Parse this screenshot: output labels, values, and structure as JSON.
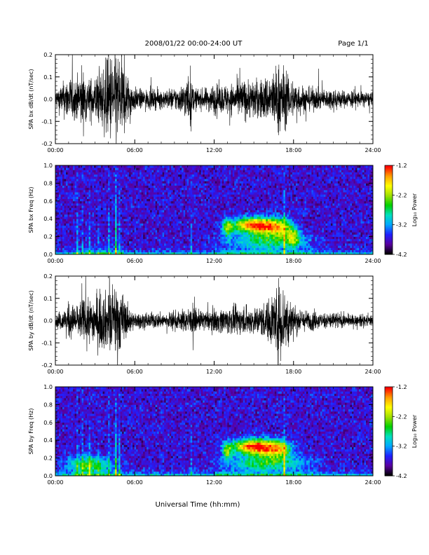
{
  "header": {
    "title": "2008/01/22  00:00-24:00 UT",
    "page": "Page 1/1"
  },
  "x_axis": {
    "title": "Universal Time (hh:mm)",
    "range": [
      0,
      24
    ],
    "unit": "hours UT",
    "ticks": [
      0,
      6,
      12,
      18,
      24
    ],
    "tick_labels": [
      "00:00",
      "06:00",
      "12:00",
      "18:00",
      "24:00"
    ]
  },
  "colors": {
    "trace": "#000000",
    "spectrogram_background": "#3a0070",
    "colormap": [
      "#000000",
      "#5a00a0",
      "#2020ff",
      "#00a8ff",
      "#00e0c0",
      "#00d000",
      "#a0e000",
      "#ffff00",
      "#ffa000",
      "#ff0000"
    ]
  },
  "chart_data": [
    {
      "type": "line",
      "id": "bx-dbdt",
      "ylabel": "SPA bx dB/dt (nT/sec)",
      "ylim": [
        -0.2,
        0.2
      ],
      "yticks": [
        -0.2,
        -0.1,
        0.0,
        0.1,
        0.2
      ],
      "ytick_labels": [
        "-0.2",
        "-0.1",
        "0.0",
        "0.1",
        "0.2"
      ],
      "x": [
        0,
        0.5,
        1.0,
        1.5,
        2.0,
        2.5,
        3.0,
        3.5,
        4.0,
        4.5,
        5.0,
        5.5,
        6.0,
        6.5,
        7.0,
        7.5,
        8.0,
        8.5,
        9.0,
        9.5,
        10.0,
        10.5,
        11.0,
        11.5,
        12.0,
        12.5,
        13.0,
        13.5,
        14.0,
        14.5,
        15.0,
        15.5,
        16.0,
        16.5,
        17.0,
        17.5,
        18.0,
        18.5,
        19.0,
        19.5,
        20.0,
        20.5,
        21.0,
        21.5,
        22.0,
        22.5,
        23.0,
        23.5,
        24.0
      ],
      "amplitude": [
        0.05,
        0.08,
        0.12,
        0.1,
        0.15,
        0.1,
        0.12,
        0.15,
        0.22,
        0.25,
        0.22,
        0.12,
        0.06,
        0.05,
        0.05,
        0.05,
        0.05,
        0.05,
        0.06,
        0.07,
        0.12,
        0.06,
        0.05,
        0.06,
        0.08,
        0.07,
        0.08,
        0.08,
        0.1,
        0.1,
        0.1,
        0.1,
        0.12,
        0.15,
        0.2,
        0.12,
        0.1,
        0.08,
        0.06,
        0.06,
        0.05,
        0.05,
        0.06,
        0.05,
        0.04,
        0.05,
        0.04,
        0.04,
        0.03
      ],
      "spikes": [
        [
          2.0,
          0.22
        ],
        [
          4.1,
          0.3
        ],
        [
          4.6,
          0.28
        ],
        [
          10.2,
          0.18
        ],
        [
          17.2,
          0.22
        ],
        [
          17.6,
          0.16
        ]
      ]
    },
    {
      "type": "heatmap",
      "id": "bx-spectrogram",
      "ylabel": "SPA bx Freq (Hz)",
      "ylim": [
        0.0,
        1.0
      ],
      "yticks": [
        0.0,
        0.2,
        0.4,
        0.6,
        0.8,
        1.0
      ],
      "ytick_labels": [
        "0.0",
        "0.2",
        "0.4",
        "0.6",
        "0.8",
        "1.0"
      ],
      "colorbar": {
        "label": "Log₁₀ Power",
        "range": [
          -4.2,
          -1.2
        ],
        "ticks": [
          -4.2,
          -3.2,
          -2.2,
          -1.2
        ],
        "tick_labels": [
          "-4.2",
          "-3.2",
          "-2.2",
          "-1.2"
        ]
      },
      "vertical_bands": [
        [
          1.7,
          0.7,
          0.8
        ],
        [
          2.1,
          0.6,
          0.7
        ],
        [
          2.6,
          0.5,
          0.6
        ],
        [
          3.3,
          0.5,
          0.6
        ],
        [
          4.0,
          0.8,
          0.7
        ],
        [
          4.6,
          1.0,
          1.0
        ],
        [
          4.8,
          0.7,
          0.8
        ],
        [
          10.3,
          0.5,
          0.5
        ],
        [
          17.3,
          0.8,
          0.6
        ]
      ],
      "blobs": [
        [
          13.0,
          0.3,
          0.35,
          0.1,
          0.7
        ],
        [
          14.5,
          0.33,
          1.3,
          0.08,
          0.95
        ],
        [
          15.8,
          0.32,
          1.2,
          0.09,
          0.95
        ],
        [
          17.0,
          0.3,
          0.9,
          0.1,
          0.75
        ],
        [
          18.0,
          0.2,
          0.5,
          0.1,
          0.7
        ],
        [
          16.0,
          0.15,
          2.6,
          0.09,
          0.55
        ]
      ]
    },
    {
      "type": "line",
      "id": "by-dbdt",
      "ylabel": "SPA by dB/dt (nT/sec)",
      "ylim": [
        -0.2,
        0.2
      ],
      "yticks": [
        -0.2,
        -0.1,
        0.0,
        0.1,
        0.2
      ],
      "ytick_labels": [
        "-0.2",
        "-0.1",
        "0.0",
        "0.1",
        "0.2"
      ],
      "x": [
        0,
        0.5,
        1.0,
        1.5,
        2.0,
        2.5,
        3.0,
        3.5,
        4.0,
        4.5,
        5.0,
        5.5,
        6.0,
        6.5,
        7.0,
        7.5,
        8.0,
        8.5,
        9.0,
        9.5,
        10.0,
        10.5,
        11.0,
        11.5,
        12.0,
        12.5,
        13.0,
        13.5,
        14.0,
        14.5,
        15.0,
        15.5,
        16.0,
        16.5,
        17.0,
        17.5,
        18.0,
        18.5,
        19.0,
        19.5,
        20.0,
        20.5,
        21.0,
        21.5,
        22.0,
        22.5,
        23.0,
        23.5,
        24.0
      ],
      "amplitude": [
        0.04,
        0.05,
        0.09,
        0.08,
        0.11,
        0.1,
        0.13,
        0.15,
        0.14,
        0.2,
        0.15,
        0.07,
        0.04,
        0.04,
        0.04,
        0.04,
        0.04,
        0.04,
        0.05,
        0.05,
        0.07,
        0.05,
        0.05,
        0.05,
        0.06,
        0.06,
        0.07,
        0.07,
        0.07,
        0.07,
        0.07,
        0.08,
        0.1,
        0.15,
        0.22,
        0.14,
        0.08,
        0.06,
        0.05,
        0.05,
        0.04,
        0.04,
        0.05,
        0.04,
        0.03,
        0.03,
        0.03,
        0.03,
        0.03
      ],
      "spikes": [
        [
          2.2,
          0.15
        ],
        [
          4.6,
          0.24
        ],
        [
          10.4,
          0.14
        ],
        [
          17.0,
          0.24
        ],
        [
          17.3,
          0.26
        ],
        [
          17.6,
          0.2
        ]
      ]
    },
    {
      "type": "heatmap",
      "id": "by-spectrogram",
      "ylabel": "SPA by Freq (Hz)",
      "ylim": [
        0.0,
        1.0
      ],
      "yticks": [
        0.0,
        0.2,
        0.4,
        0.6,
        0.8,
        1.0
      ],
      "ytick_labels": [
        "0.0",
        "0.2",
        "0.4",
        "0.6",
        "0.8",
        "1.0"
      ],
      "colorbar": {
        "label": "Log₁₀ Power",
        "range": [
          -4.2,
          -1.2
        ],
        "ticks": [
          -4.2,
          -3.2,
          -2.2,
          -1.2
        ],
        "tick_labels": [
          "-4.2",
          "-3.2",
          "-2.2",
          "-1.2"
        ]
      },
      "vertical_bands": [
        [
          1.7,
          0.7,
          0.8
        ],
        [
          2.1,
          0.6,
          0.8
        ],
        [
          2.6,
          0.6,
          0.7
        ],
        [
          3.3,
          0.6,
          0.7
        ],
        [
          4.0,
          0.8,
          0.8
        ],
        [
          4.6,
          1.0,
          1.0
        ],
        [
          4.8,
          0.7,
          0.8
        ],
        [
          10.3,
          0.5,
          0.5
        ],
        [
          17.3,
          0.8,
          0.6
        ]
      ],
      "blobs": [
        [
          2.5,
          0.13,
          1.6,
          0.09,
          0.65
        ],
        [
          13.0,
          0.28,
          0.35,
          0.09,
          0.7
        ],
        [
          14.5,
          0.33,
          1.3,
          0.08,
          0.95
        ],
        [
          15.8,
          0.32,
          1.2,
          0.09,
          0.95
        ],
        [
          17.0,
          0.3,
          0.9,
          0.09,
          0.75
        ],
        [
          16.0,
          0.15,
          2.8,
          0.09,
          0.6
        ]
      ]
    }
  ]
}
